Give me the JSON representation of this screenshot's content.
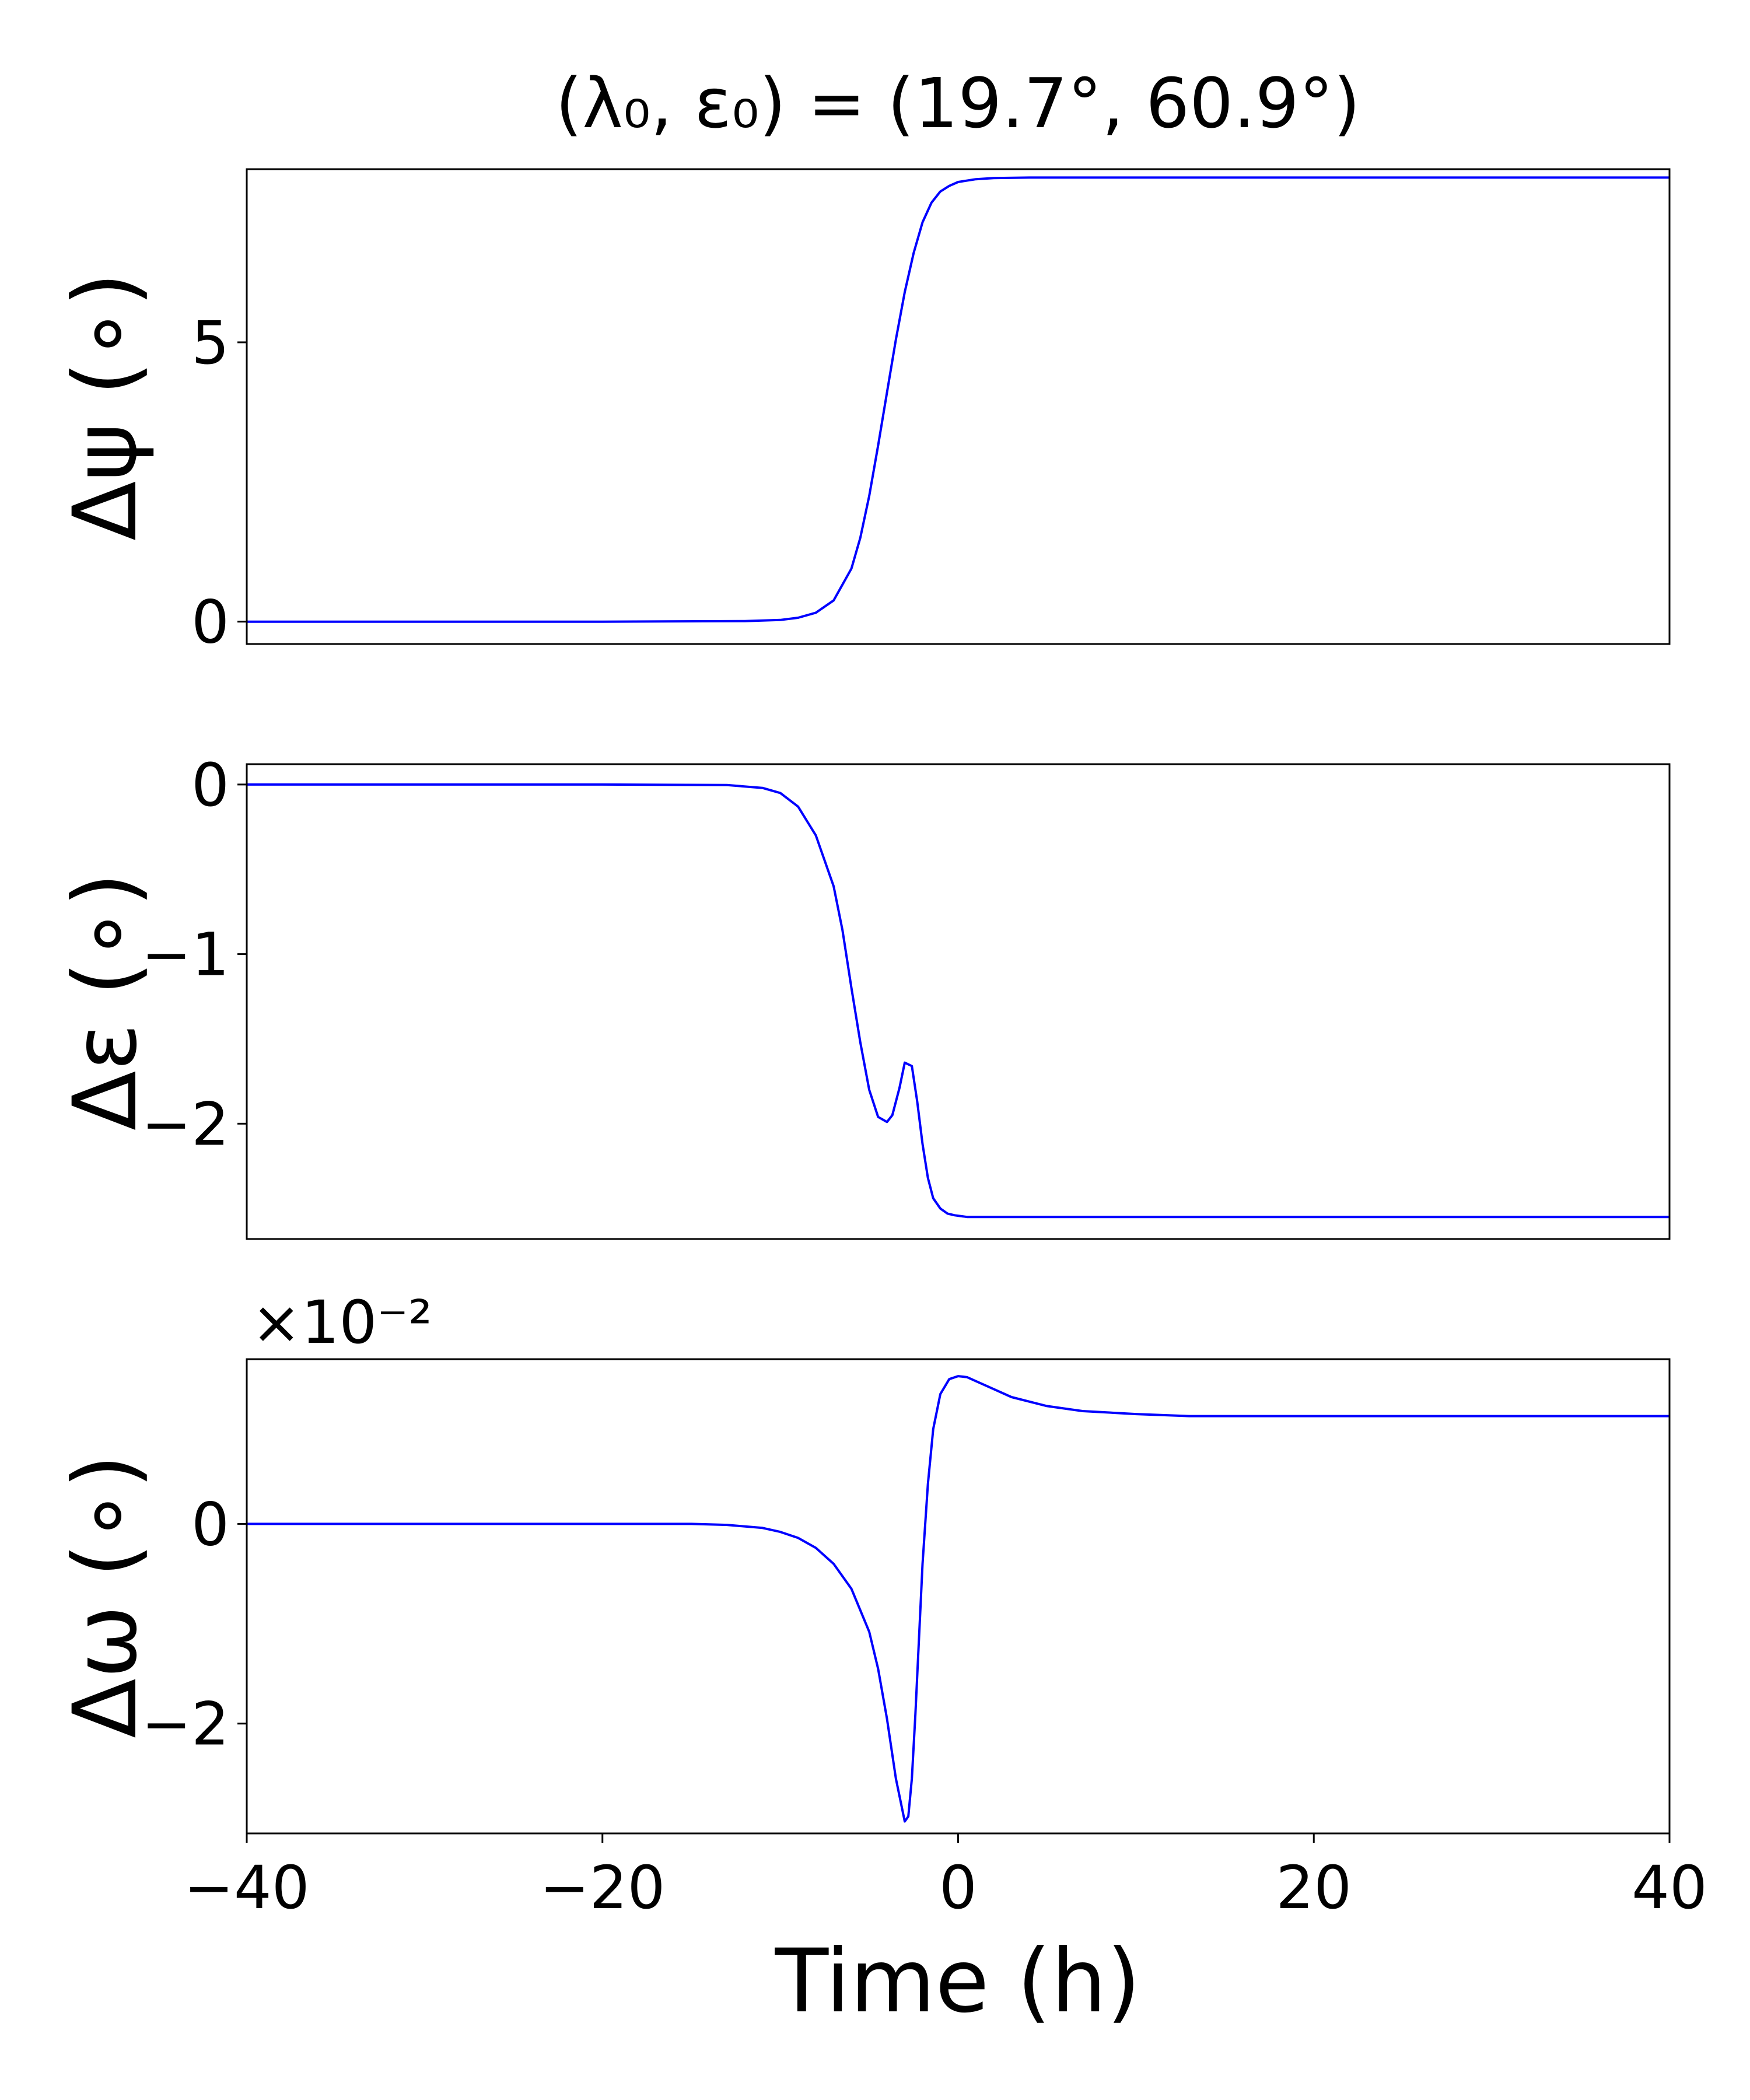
{
  "figure": {
    "title": "(λ₀, ε₀) = (19.7°, 60.9°)",
    "xlabel": "Time (h)",
    "line_color": "#0000ff"
  },
  "chart_data": [
    {
      "type": "line",
      "ylabel": "Δψ (∘)",
      "xlim": [
        -40,
        40
      ],
      "ylim": [
        -0.4,
        8.1
      ],
      "yticks": [
        {
          "v": 0,
          "label": "0"
        },
        {
          "v": 5,
          "label": "5"
        }
      ],
      "show_xticklabels": false,
      "offset_text": "",
      "series": [
        {
          "color": "#0000ff",
          "x": [
            -40,
            -20,
            -12,
            -10,
            -9,
            -8,
            -7,
            -6,
            -5.5,
            -5,
            -4.5,
            -4,
            -3.5,
            -3,
            -2.5,
            -2,
            -1.5,
            -1,
            -0.5,
            0,
            1,
            2,
            4,
            10,
            20,
            40
          ],
          "y": [
            0,
            0,
            0.01,
            0.03,
            0.07,
            0.16,
            0.38,
            0.95,
            1.5,
            2.25,
            3.15,
            4.1,
            5.05,
            5.9,
            6.6,
            7.15,
            7.5,
            7.7,
            7.8,
            7.87,
            7.92,
            7.94,
            7.95,
            7.95,
            7.95,
            7.95
          ]
        }
      ]
    },
    {
      "type": "line",
      "ylabel": "Δε (∘)",
      "xlim": [
        -40,
        40
      ],
      "ylim": [
        -2.68,
        0.12
      ],
      "yticks": [
        {
          "v": 0,
          "label": "0"
        },
        {
          "v": -1,
          "label": "−1"
        },
        {
          "v": -2,
          "label": "−2"
        }
      ],
      "show_xticklabels": false,
      "offset_text": "",
      "series": [
        {
          "color": "#0000ff",
          "x": [
            -40,
            -20,
            -13,
            -11,
            -10,
            -9,
            -8,
            -7,
            -6.5,
            -6,
            -5.5,
            -5,
            -4.5,
            -4,
            -3.7,
            -3.3,
            -3,
            -2.6,
            -2.3,
            -2,
            -1.7,
            -1.4,
            -1,
            -0.6,
            -0.2,
            0.5,
            2,
            10,
            20,
            40
          ],
          "y": [
            0,
            0,
            -0.003,
            -0.02,
            -0.05,
            -0.13,
            -0.3,
            -0.6,
            -0.86,
            -1.2,
            -1.52,
            -1.8,
            -1.96,
            -1.99,
            -1.95,
            -1.79,
            -1.64,
            -1.66,
            -1.87,
            -2.12,
            -2.32,
            -2.44,
            -2.5,
            -2.53,
            -2.54,
            -2.55,
            -2.55,
            -2.55,
            -2.55,
            -2.55
          ]
        }
      ]
    },
    {
      "type": "line",
      "ylabel": "Δω (∘)",
      "xlim": [
        -40,
        40
      ],
      "ylim": [
        -3.1,
        1.65
      ],
      "yticks": [
        {
          "v": 0,
          "label": "0"
        },
        {
          "v": -2,
          "label": "−2"
        }
      ],
      "xticks": [
        {
          "v": -40,
          "label": "−40"
        },
        {
          "v": -20,
          "label": "−20"
        },
        {
          "v": 0,
          "label": "0"
        },
        {
          "v": 20,
          "label": "20"
        },
        {
          "v": 40,
          "label": "40"
        }
      ],
      "show_xticklabels": true,
      "offset_text": "×10⁻²",
      "series": [
        {
          "color": "#0000ff",
          "x": [
            -40,
            -20,
            -15,
            -13,
            -11,
            -10,
            -9,
            -8,
            -7,
            -6,
            -5,
            -4.5,
            -4,
            -3.5,
            -3,
            -2.8,
            -2.6,
            -2.4,
            -2.2,
            -2,
            -1.7,
            -1.4,
            -1,
            -0.5,
            0,
            0.5,
            1,
            2,
            3,
            5,
            7,
            10,
            13,
            20,
            40
          ],
          "y": [
            0,
            0,
            0,
            -0.01,
            -0.04,
            -0.08,
            -0.14,
            -0.24,
            -0.4,
            -0.65,
            -1.08,
            -1.45,
            -1.95,
            -2.55,
            -2.98,
            -2.93,
            -2.55,
            -1.9,
            -1.15,
            -0.4,
            0.4,
            0.95,
            1.3,
            1.45,
            1.48,
            1.47,
            1.43,
            1.35,
            1.27,
            1.18,
            1.13,
            1.1,
            1.08,
            1.08,
            1.08
          ]
        }
      ]
    }
  ]
}
